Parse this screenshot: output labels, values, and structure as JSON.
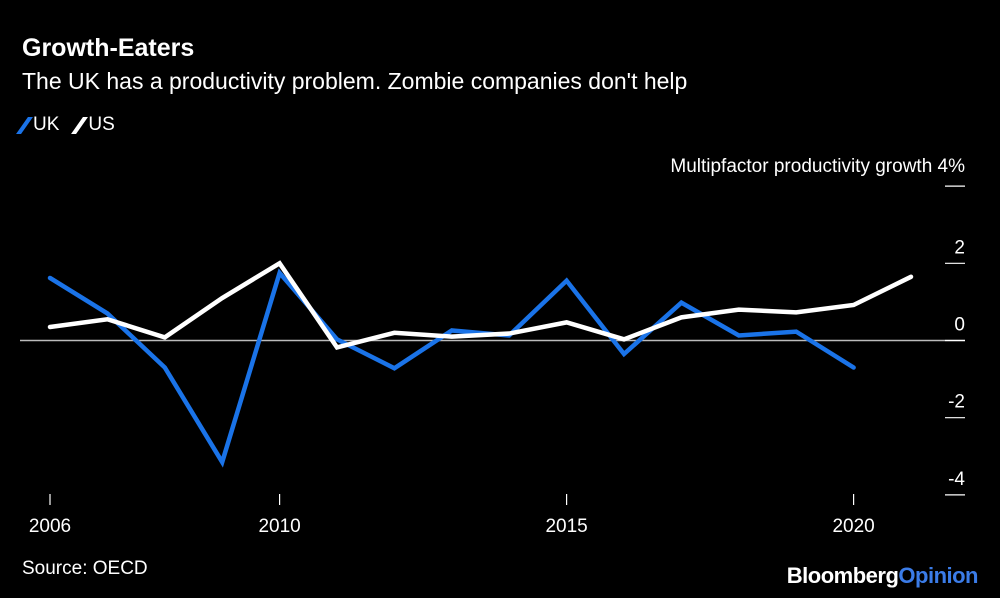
{
  "title": "Growth-Eaters",
  "subtitle": "The UK has a productivity problem. Zombie companies don't help",
  "source": "Source: OECD",
  "logo": {
    "part1": "Bloomberg",
    "part2": "Opinion"
  },
  "chart_data": {
    "type": "line",
    "ylabel": "Multipfactor productivity growth",
    "y_unit": "%",
    "ylim": [
      -4,
      4
    ],
    "yticks": [
      4,
      2,
      0,
      -2,
      -4
    ],
    "ytick_labels": [
      "4%",
      "2",
      "0",
      "-2",
      "-4"
    ],
    "xlim": [
      2006,
      2021
    ],
    "xticks": [
      2006,
      2010,
      2015,
      2020
    ],
    "xtick_labels": [
      "2006",
      "2010",
      "2015",
      "2020"
    ],
    "legend_placement": "top-left",
    "zero_line": true,
    "grid": false,
    "series": [
      {
        "name": "UK",
        "color": "#1a73e8",
        "x": [
          2006,
          2007,
          2008,
          2009,
          2010,
          2011,
          2012,
          2013,
          2014,
          2015,
          2016,
          2017,
          2018,
          2019,
          2020
        ],
        "values": [
          1.62,
          0.7,
          -0.7,
          -3.15,
          1.75,
          0.03,
          -0.72,
          0.26,
          0.13,
          1.55,
          -0.35,
          0.98,
          0.13,
          0.23,
          -0.7
        ]
      },
      {
        "name": "US",
        "color": "#ffffff",
        "x": [
          2006,
          2007,
          2008,
          2009,
          2010,
          2011,
          2012,
          2013,
          2014,
          2015,
          2016,
          2017,
          2018,
          2019,
          2020,
          2021
        ],
        "values": [
          0.35,
          0.55,
          0.08,
          1.1,
          2.0,
          -0.18,
          0.2,
          0.1,
          0.18,
          0.47,
          0.03,
          0.6,
          0.8,
          0.73,
          0.92,
          1.65
        ]
      }
    ]
  }
}
